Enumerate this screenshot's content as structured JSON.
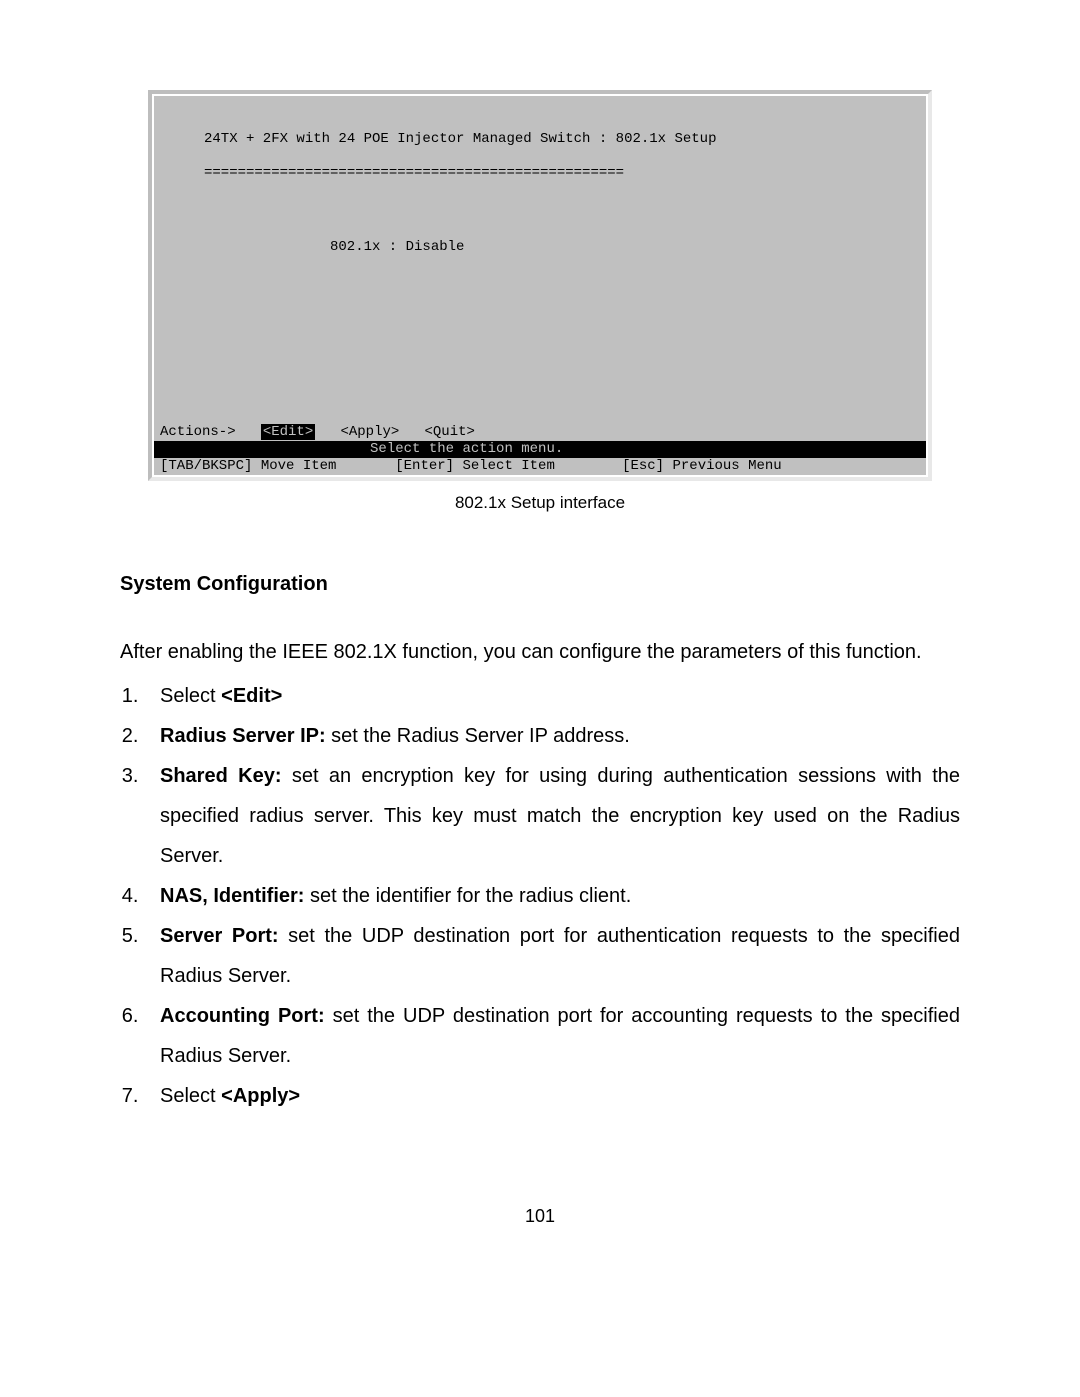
{
  "terminal": {
    "title": "24TX + 2FX with 24 POE Injector Managed Switch : 802.1x Setup",
    "rule": "==================================================",
    "setting_label": "802.1x : ",
    "setting_value": "Disable",
    "actions_prefix": "Actions->   ",
    "edit": "<Edit>",
    "gap1": "   ",
    "apply": "<Apply>",
    "gap2": "   ",
    "quit": "<Quit>",
    "bar_select": "                         Select the action menu.                           ",
    "bar_help": "[TAB/BKSPC] Move Item       [Enter] Select Item        [Esc] Previous Menu "
  },
  "caption": "802.1x Setup interface",
  "heading": "System Configuration",
  "intro": "After enabling the IEEE 802.1X function, you can configure the parameters of this function.",
  "steps": [
    {
      "prefix": "Select ",
      "bold": "<Edit>",
      "rest": ""
    },
    {
      "bold": "Radius Server IP:",
      "rest": " set the Radius Server IP address."
    },
    {
      "bold": "Shared Key:",
      "rest": " set an encryption key for using during authentication sessions with the specified radius server. This key must match the encryption key used on the Radius Server."
    },
    {
      "bold": "NAS, Identifier:",
      "rest": " set the identifier for the radius client."
    },
    {
      "bold": "Server Port:",
      "rest": " set the UDP destination port for authentication requests to the specified Radius Server."
    },
    {
      "bold": "Accounting Port:",
      "rest": " set the UDP destination port for accounting requests to the specified Radius Server."
    },
    {
      "prefix": "Select ",
      "bold": "<Apply>",
      "rest": ""
    }
  ],
  "page_number": "101"
}
